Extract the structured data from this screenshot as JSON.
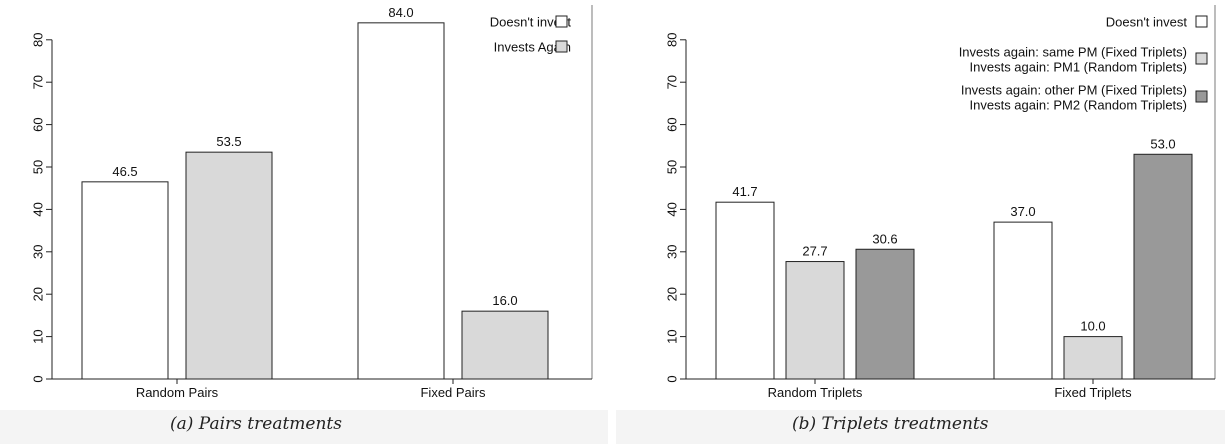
{
  "captions": [
    "(a) Pairs treatments",
    "(b) Triplets treatments"
  ],
  "chart_data": [
    {
      "type": "bar",
      "categories": [
        "Random Pairs",
        "Fixed Pairs"
      ],
      "series": [
        {
          "name": "Doesn't invest",
          "color": "#ffffff",
          "values": [
            46.5,
            84.0
          ]
        },
        {
          "name": "Invests Again",
          "color": "#d9d9d9",
          "values": [
            53.5,
            16.0
          ]
        }
      ],
      "value_labels": [
        [
          "46.5",
          "84.0"
        ],
        [
          "53.5",
          "16.0"
        ]
      ],
      "yticks": [
        0,
        10,
        20,
        30,
        40,
        50,
        60,
        70,
        80
      ],
      "ylim": [
        0,
        85
      ],
      "grid": false,
      "legend_position": "top-right",
      "caption": "(a) Pairs treatments"
    },
    {
      "type": "bar",
      "categories": [
        "Random Triplets",
        "Fixed Triplets"
      ],
      "series": [
        {
          "name": "Doesn't invest",
          "color": "#ffffff",
          "values": [
            41.7,
            37.0
          ]
        },
        {
          "name": "Invests again: same PM (Fixed Triplets)\nInvests again: PM1 (Random Triplets)",
          "color": "#d9d9d9",
          "values": [
            27.7,
            10.0
          ]
        },
        {
          "name": "Invests again: other PM (Fixed Triplets)\nInvests again: PM2 (Random Triplets)",
          "color": "#999999",
          "values": [
            30.6,
            53.0
          ]
        }
      ],
      "value_labels": [
        [
          "41.7",
          "37.0"
        ],
        [
          "27.7",
          "10.0"
        ],
        [
          "30.6",
          "53.0"
        ]
      ],
      "yticks": [
        0,
        10,
        20,
        30,
        40,
        50,
        60,
        70,
        80
      ],
      "ylim": [
        0,
        85
      ],
      "grid": false,
      "legend_position": "top-right",
      "caption": "(b) Triplets treatments"
    }
  ]
}
